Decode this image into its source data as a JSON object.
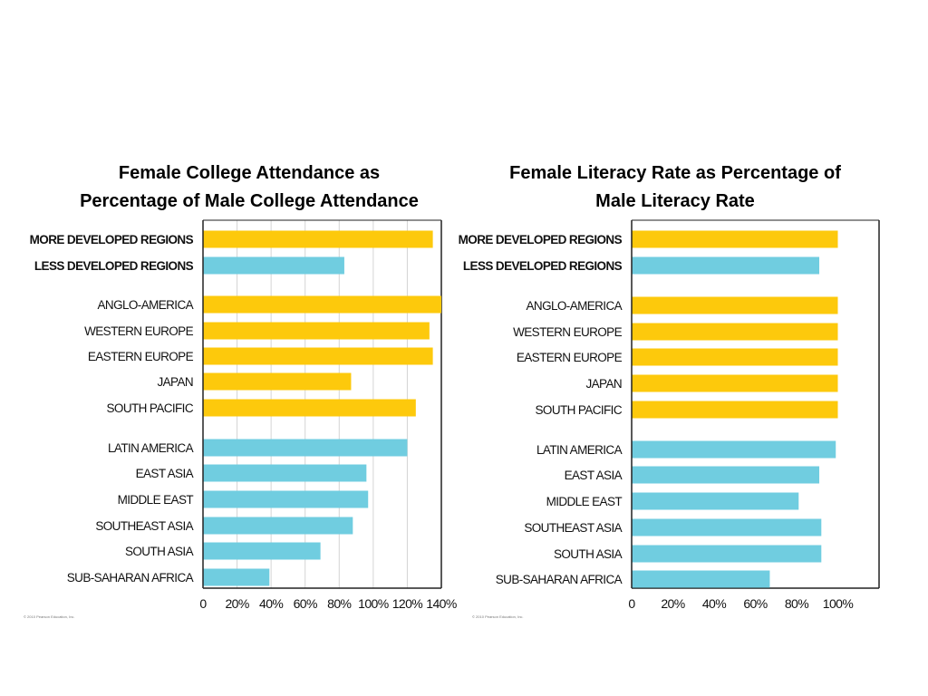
{
  "colors": {
    "more_developed": "#fdc90c",
    "less_developed": "#70cde0",
    "gridline": "#d4d4d4",
    "frame": "#222222"
  },
  "chart_data": [
    {
      "type": "bar",
      "orientation": "horizontal",
      "title_lines": [
        "Female College Attendance as",
        "Percentage of Male College Attendance"
      ],
      "categories": [
        "MORE DEVELOPED REGIONS",
        "LESS DEVELOPED REGIONS",
        "ANGLO-AMERICA",
        "WESTERN EUROPE",
        "EASTERN EUROPE",
        "JAPAN",
        "SOUTH PACIFIC",
        "LATIN AMERICA",
        "EAST ASIA",
        "MIDDLE EAST",
        "SOUTHEAST ASIA",
        "SOUTH ASIA",
        "SUB-SAHARAN AFRICA"
      ],
      "values": [
        135,
        83,
        140,
        133,
        135,
        87,
        125,
        120,
        96,
        97,
        88,
        69,
        39
      ],
      "bar_color_keys": [
        "more_developed",
        "less_developed",
        "more_developed",
        "more_developed",
        "more_developed",
        "more_developed",
        "more_developed",
        "less_developed",
        "less_developed",
        "less_developed",
        "less_developed",
        "less_developed",
        "less_developed"
      ],
      "xlim": [
        0,
        140
      ],
      "tick_labels": [
        "0",
        "20%",
        "40%",
        "60%",
        "80%",
        "100%",
        "120%",
        "140%"
      ],
      "grid": true,
      "credit": "© 2010 Pearson Education, Inc."
    },
    {
      "type": "bar",
      "orientation": "horizontal",
      "title_lines": [
        "Female Literacy Rate as Percentage of",
        "Male Literacy Rate"
      ],
      "categories": [
        "MORE DEVELOPED REGIONS",
        "LESS DEVELOPED REGIONS",
        "ANGLO-AMERICA",
        "WESTERN EUROPE",
        "EASTERN EUROPE",
        "JAPAN",
        "SOUTH PACIFIC",
        "LATIN AMERICA",
        "EAST ASIA",
        "MIDDLE EAST",
        "SOUTHEAST ASIA",
        "SOUTH ASIA",
        "SUB-SAHARAN AFRICA"
      ],
      "values": [
        100,
        91,
        100,
        100,
        100,
        100,
        100,
        99,
        91,
        81,
        92,
        92,
        67
      ],
      "bar_color_keys": [
        "more_developed",
        "less_developed",
        "more_developed",
        "more_developed",
        "more_developed",
        "more_developed",
        "more_developed",
        "less_developed",
        "less_developed",
        "less_developed",
        "less_developed",
        "less_developed",
        "less_developed"
      ],
      "xlim": [
        0,
        120
      ],
      "tick_labels": [
        "0",
        "20%",
        "40%",
        "60%",
        "80%",
        "100%"
      ],
      "grid": false,
      "credit": "© 2010 Pearson Education, Inc."
    }
  ]
}
